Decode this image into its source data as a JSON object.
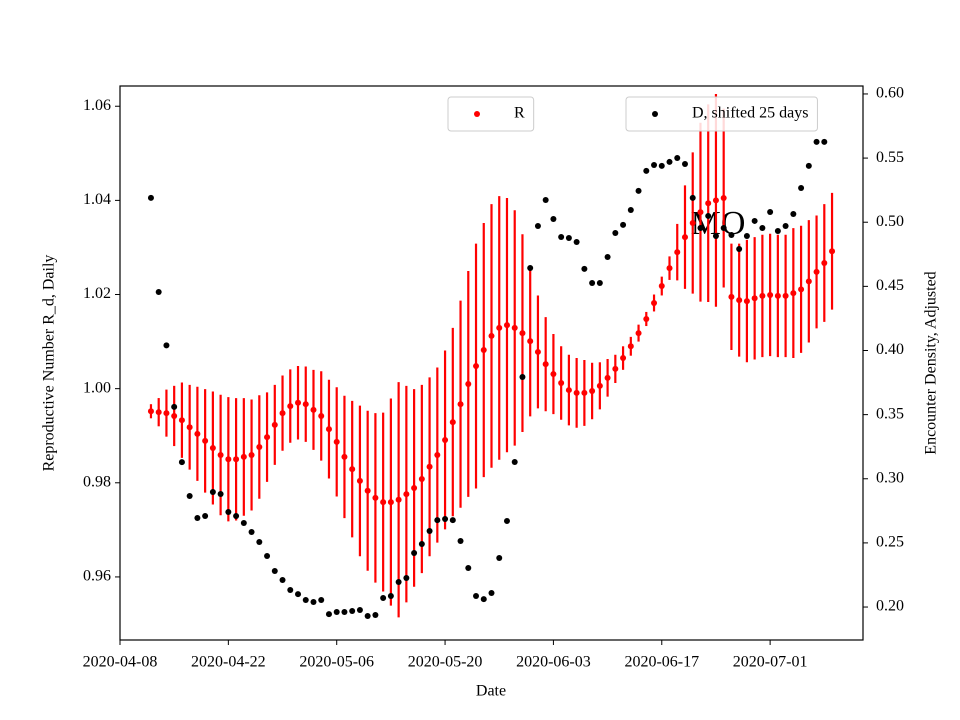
{
  "chart_data": {
    "type": "scatter",
    "xlabel": "Date",
    "ylabel": "Reproductive Number R_d, Daily",
    "y2label": "Encounter Density, Adjusted",
    "annotation": "MO",
    "x": [
      "2020-04-12",
      "2020-04-13",
      "2020-04-14",
      "2020-04-15",
      "2020-04-16",
      "2020-04-17",
      "2020-04-18",
      "2020-04-19",
      "2020-04-20",
      "2020-04-21",
      "2020-04-22",
      "2020-04-23",
      "2020-04-24",
      "2020-04-25",
      "2020-04-26",
      "2020-04-27",
      "2020-04-28",
      "2020-04-29",
      "2020-04-30",
      "2020-05-01",
      "2020-05-02",
      "2020-05-03",
      "2020-05-04",
      "2020-05-05",
      "2020-05-06",
      "2020-05-07",
      "2020-05-08",
      "2020-05-09",
      "2020-05-10",
      "2020-05-11",
      "2020-05-12",
      "2020-05-13",
      "2020-05-14",
      "2020-05-15",
      "2020-05-16",
      "2020-05-17",
      "2020-05-18",
      "2020-05-19",
      "2020-05-20",
      "2020-05-21",
      "2020-05-22",
      "2020-05-23",
      "2020-05-24",
      "2020-05-25",
      "2020-05-26",
      "2020-05-27",
      "2020-05-28",
      "2020-05-29",
      "2020-05-30",
      "2020-05-31",
      "2020-06-01",
      "2020-06-02",
      "2020-06-03",
      "2020-06-04",
      "2020-06-05",
      "2020-06-06",
      "2020-06-07",
      "2020-06-08",
      "2020-06-09",
      "2020-06-10",
      "2020-06-11",
      "2020-06-12",
      "2020-06-13",
      "2020-06-14",
      "2020-06-15",
      "2020-06-16",
      "2020-06-17",
      "2020-06-18",
      "2020-06-19",
      "2020-06-20",
      "2020-06-21",
      "2020-06-22",
      "2020-06-23",
      "2020-06-24",
      "2020-06-25",
      "2020-06-26",
      "2020-06-27",
      "2020-06-28",
      "2020-06-29",
      "2020-06-30",
      "2020-07-01",
      "2020-07-02",
      "2020-07-03",
      "2020-07-04",
      "2020-07-05",
      "2020-07-06",
      "2020-07-07",
      "2020-07-08",
      "2020-07-09"
    ],
    "series": [
      {
        "name": "R",
        "color": "#ff0000",
        "axis": "y",
        "legend": "upper center",
        "values": [
          0.9952,
          0.995,
          0.9948,
          0.9942,
          0.9933,
          0.9918,
          0.9904,
          0.9889,
          0.9874,
          0.9859,
          0.985,
          0.985,
          0.9855,
          0.9859,
          0.9876,
          0.9897,
          0.9923,
          0.9948,
          0.9963,
          0.997,
          0.9967,
          0.9955,
          0.9942,
          0.9914,
          0.9887,
          0.9855,
          0.9829,
          0.9804,
          0.9783,
          0.9768,
          0.9759,
          0.9759,
          0.9764,
          0.9776,
          0.9789,
          0.9808,
          0.9834,
          0.9859,
          0.9891,
          0.9929,
          0.9967,
          1.001,
          1.0048,
          1.0082,
          1.0112,
          1.0129,
          1.0135,
          1.0129,
          1.0118,
          1.0101,
          1.0078,
          1.0052,
          1.0031,
          1.0012,
          0.9997,
          0.9991,
          0.9991,
          0.9995,
          1.0006,
          1.0023,
          1.0042,
          1.0065,
          1.009,
          1.0118,
          1.0148,
          1.0182,
          1.0218,
          1.0256,
          1.029,
          1.0322,
          1.0352,
          1.0375,
          1.0394,
          1.04,
          1.0405,
          1.0195,
          1.0188,
          1.0186,
          1.0192,
          1.0197,
          1.0199,
          1.0197,
          1.0197,
          1.0203,
          1.0211,
          1.0228,
          1.0248,
          1.0267,
          1.0292
        ],
        "errors": [
          0.0015,
          0.003,
          0.005,
          0.0064,
          0.008,
          0.009,
          0.01,
          0.011,
          0.012,
          0.0128,
          0.0132,
          0.013,
          0.0125,
          0.0118,
          0.011,
          0.0095,
          0.0085,
          0.008,
          0.0078,
          0.0078,
          0.008,
          0.0085,
          0.0095,
          0.0105,
          0.0116,
          0.013,
          0.0145,
          0.016,
          0.017,
          0.018,
          0.019,
          0.022,
          0.025,
          0.023,
          0.021,
          0.02,
          0.019,
          0.0186,
          0.019,
          0.02,
          0.022,
          0.024,
          0.026,
          0.027,
          0.028,
          0.028,
          0.027,
          0.025,
          0.021,
          0.016,
          0.012,
          0.01,
          0.0085,
          0.0078,
          0.0075,
          0.0074,
          0.007,
          0.006,
          0.005,
          0.004,
          0.003,
          0.0025,
          0.002,
          0.0018,
          0.0015,
          0.0018,
          0.002,
          0.0025,
          0.006,
          0.011,
          0.015,
          0.019,
          0.021,
          0.0226,
          0.019,
          0.0113,
          0.012,
          0.013,
          0.013,
          0.013,
          0.013,
          0.013,
          0.013,
          0.0138,
          0.0135,
          0.013,
          0.012,
          0.0125,
          0.0124
        ]
      },
      {
        "name": "D, shifted 25 days",
        "color": "#000000",
        "axis": "y2",
        "legend": "upper right",
        "values": [
          0.519,
          0.4456,
          0.404,
          0.356,
          0.313,
          0.2866,
          0.2694,
          0.271,
          0.2897,
          0.2881,
          0.2741,
          0.271,
          0.2655,
          0.2585,
          0.2507,
          0.2398,
          0.2281,
          0.2211,
          0.2133,
          0.2101,
          0.2055,
          0.2039,
          0.2055,
          0.1945,
          0.1961,
          0.1961,
          0.1969,
          0.1977,
          0.193,
          0.1938,
          0.207,
          0.2086,
          0.2195,
          0.2226,
          0.2421,
          0.2491,
          0.2593,
          0.2678,
          0.2686,
          0.2678,
          0.2515,
          0.2304,
          0.2086,
          0.2062,
          0.2109,
          0.2382,
          0.2671,
          0.3131,
          0.3793,
          0.4643,
          0.4971,
          0.5173,
          0.5025,
          0.4885,
          0.4877,
          0.4846,
          0.4636,
          0.4526,
          0.4526,
          0.4729,
          0.4916,
          0.4979,
          0.5095,
          0.5244,
          0.54,
          0.5446,
          0.5439,
          0.547,
          0.5501,
          0.5454,
          0.519,
          0.4955,
          0.5049,
          0.4893,
          0.4955,
          0.49,
          0.4791,
          0.4893,
          0.501,
          0.4955,
          0.508,
          0.4932,
          0.4971,
          0.5064,
          0.5267,
          0.5439,
          0.5626,
          0.5626,
          null
        ]
      }
    ],
    "xlim": [
      "2020-04-08",
      "2020-07-13"
    ],
    "xticks": [
      "2020-04-08",
      "2020-04-22",
      "2020-05-06",
      "2020-05-20",
      "2020-06-03",
      "2020-06-17",
      "2020-07-01"
    ],
    "ylim": [
      0.9466,
      1.0643
    ],
    "yticks": [
      {
        "value": 0.96,
        "label": "0.96"
      },
      {
        "value": 0.98,
        "label": "0.98"
      },
      {
        "value": 1.0,
        "label": "1.00"
      },
      {
        "value": 1.02,
        "label": "1.02"
      },
      {
        "value": 1.04,
        "label": "1.04"
      },
      {
        "value": 1.06,
        "label": "1.06"
      }
    ],
    "y2lim": [
      0.1743,
      0.6062
    ],
    "y2ticks": [
      {
        "value": 0.2,
        "label": "0.20"
      },
      {
        "value": 0.25,
        "label": "0.25"
      },
      {
        "value": 0.3,
        "label": "0.30"
      },
      {
        "value": 0.35,
        "label": "0.35"
      },
      {
        "value": 0.4,
        "label": "0.40"
      },
      {
        "value": 0.45,
        "label": "0.45"
      },
      {
        "value": 0.5,
        "label": "0.50"
      },
      {
        "value": 0.55,
        "label": "0.55"
      },
      {
        "value": 0.6,
        "label": "0.60"
      }
    ],
    "ylabel_color": "#ff0000",
    "grid": false
  }
}
